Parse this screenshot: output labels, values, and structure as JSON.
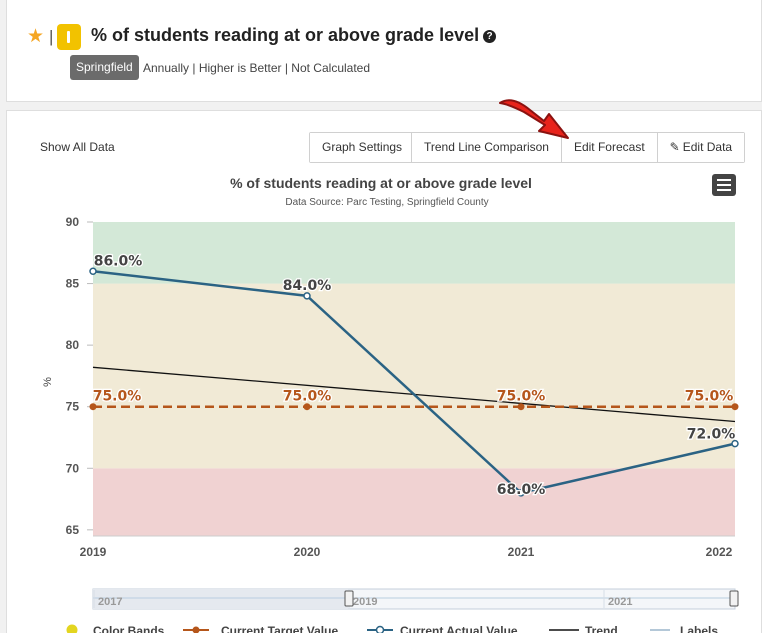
{
  "header": {
    "title": "% of students reading at or above grade level",
    "tag": "Springfield",
    "subtitle": "Annually | Higher is Better | Not Calculated",
    "help_glyph": "?"
  },
  "toolbar": {
    "show_all": "Show All Data",
    "graph_settings": "Graph Settings",
    "trend_comparison": "Trend Line Comparison",
    "edit_forecast": "Edit Forecast",
    "edit_data": "Edit Data"
  },
  "chart_data": {
    "type": "line",
    "title": "% of students reading at or above grade level",
    "subtitle": "Data Source: Parc Testing, Springfield County",
    "ylabel": "%",
    "xlabel": "",
    "x": [
      "2019",
      "2020",
      "2021",
      "2022"
    ],
    "ylim": [
      64.5,
      90
    ],
    "yticks": [
      65,
      70,
      75,
      80,
      85,
      90
    ],
    "color_bands": [
      {
        "from": 64.5,
        "to": 70,
        "color": "#f0d2d2"
      },
      {
        "from": 70,
        "to": 85,
        "color": "#f1ead6"
      },
      {
        "from": 85,
        "to": 90,
        "color": "#d3e8d7"
      }
    ],
    "series": [
      {
        "name": "Current Actual Value",
        "values": [
          86.0,
          84.0,
          68.0,
          72.0
        ],
        "labels": [
          "86.0%",
          "84.0%",
          "68.0%",
          "72.0%"
        ],
        "color": "#2b6384"
      },
      {
        "name": "Current Target Value",
        "values": [
          75.0,
          75.0,
          75.0,
          75.0
        ],
        "labels": [
          "75.0%",
          "75.0%",
          "75.0%",
          "75.0%"
        ],
        "color": "#b5561b"
      },
      {
        "name": "Trend",
        "values": [
          78.2,
          76.8,
          75.3,
          73.8
        ],
        "color": "#111111"
      }
    ],
    "navigator_labels": [
      "2017",
      "2019",
      "2021"
    ],
    "legend": {
      "placement": "bottom",
      "items": [
        "Color Bands",
        "Current Target Value",
        "Current Actual Value",
        "Trend",
        "Labels"
      ]
    }
  }
}
